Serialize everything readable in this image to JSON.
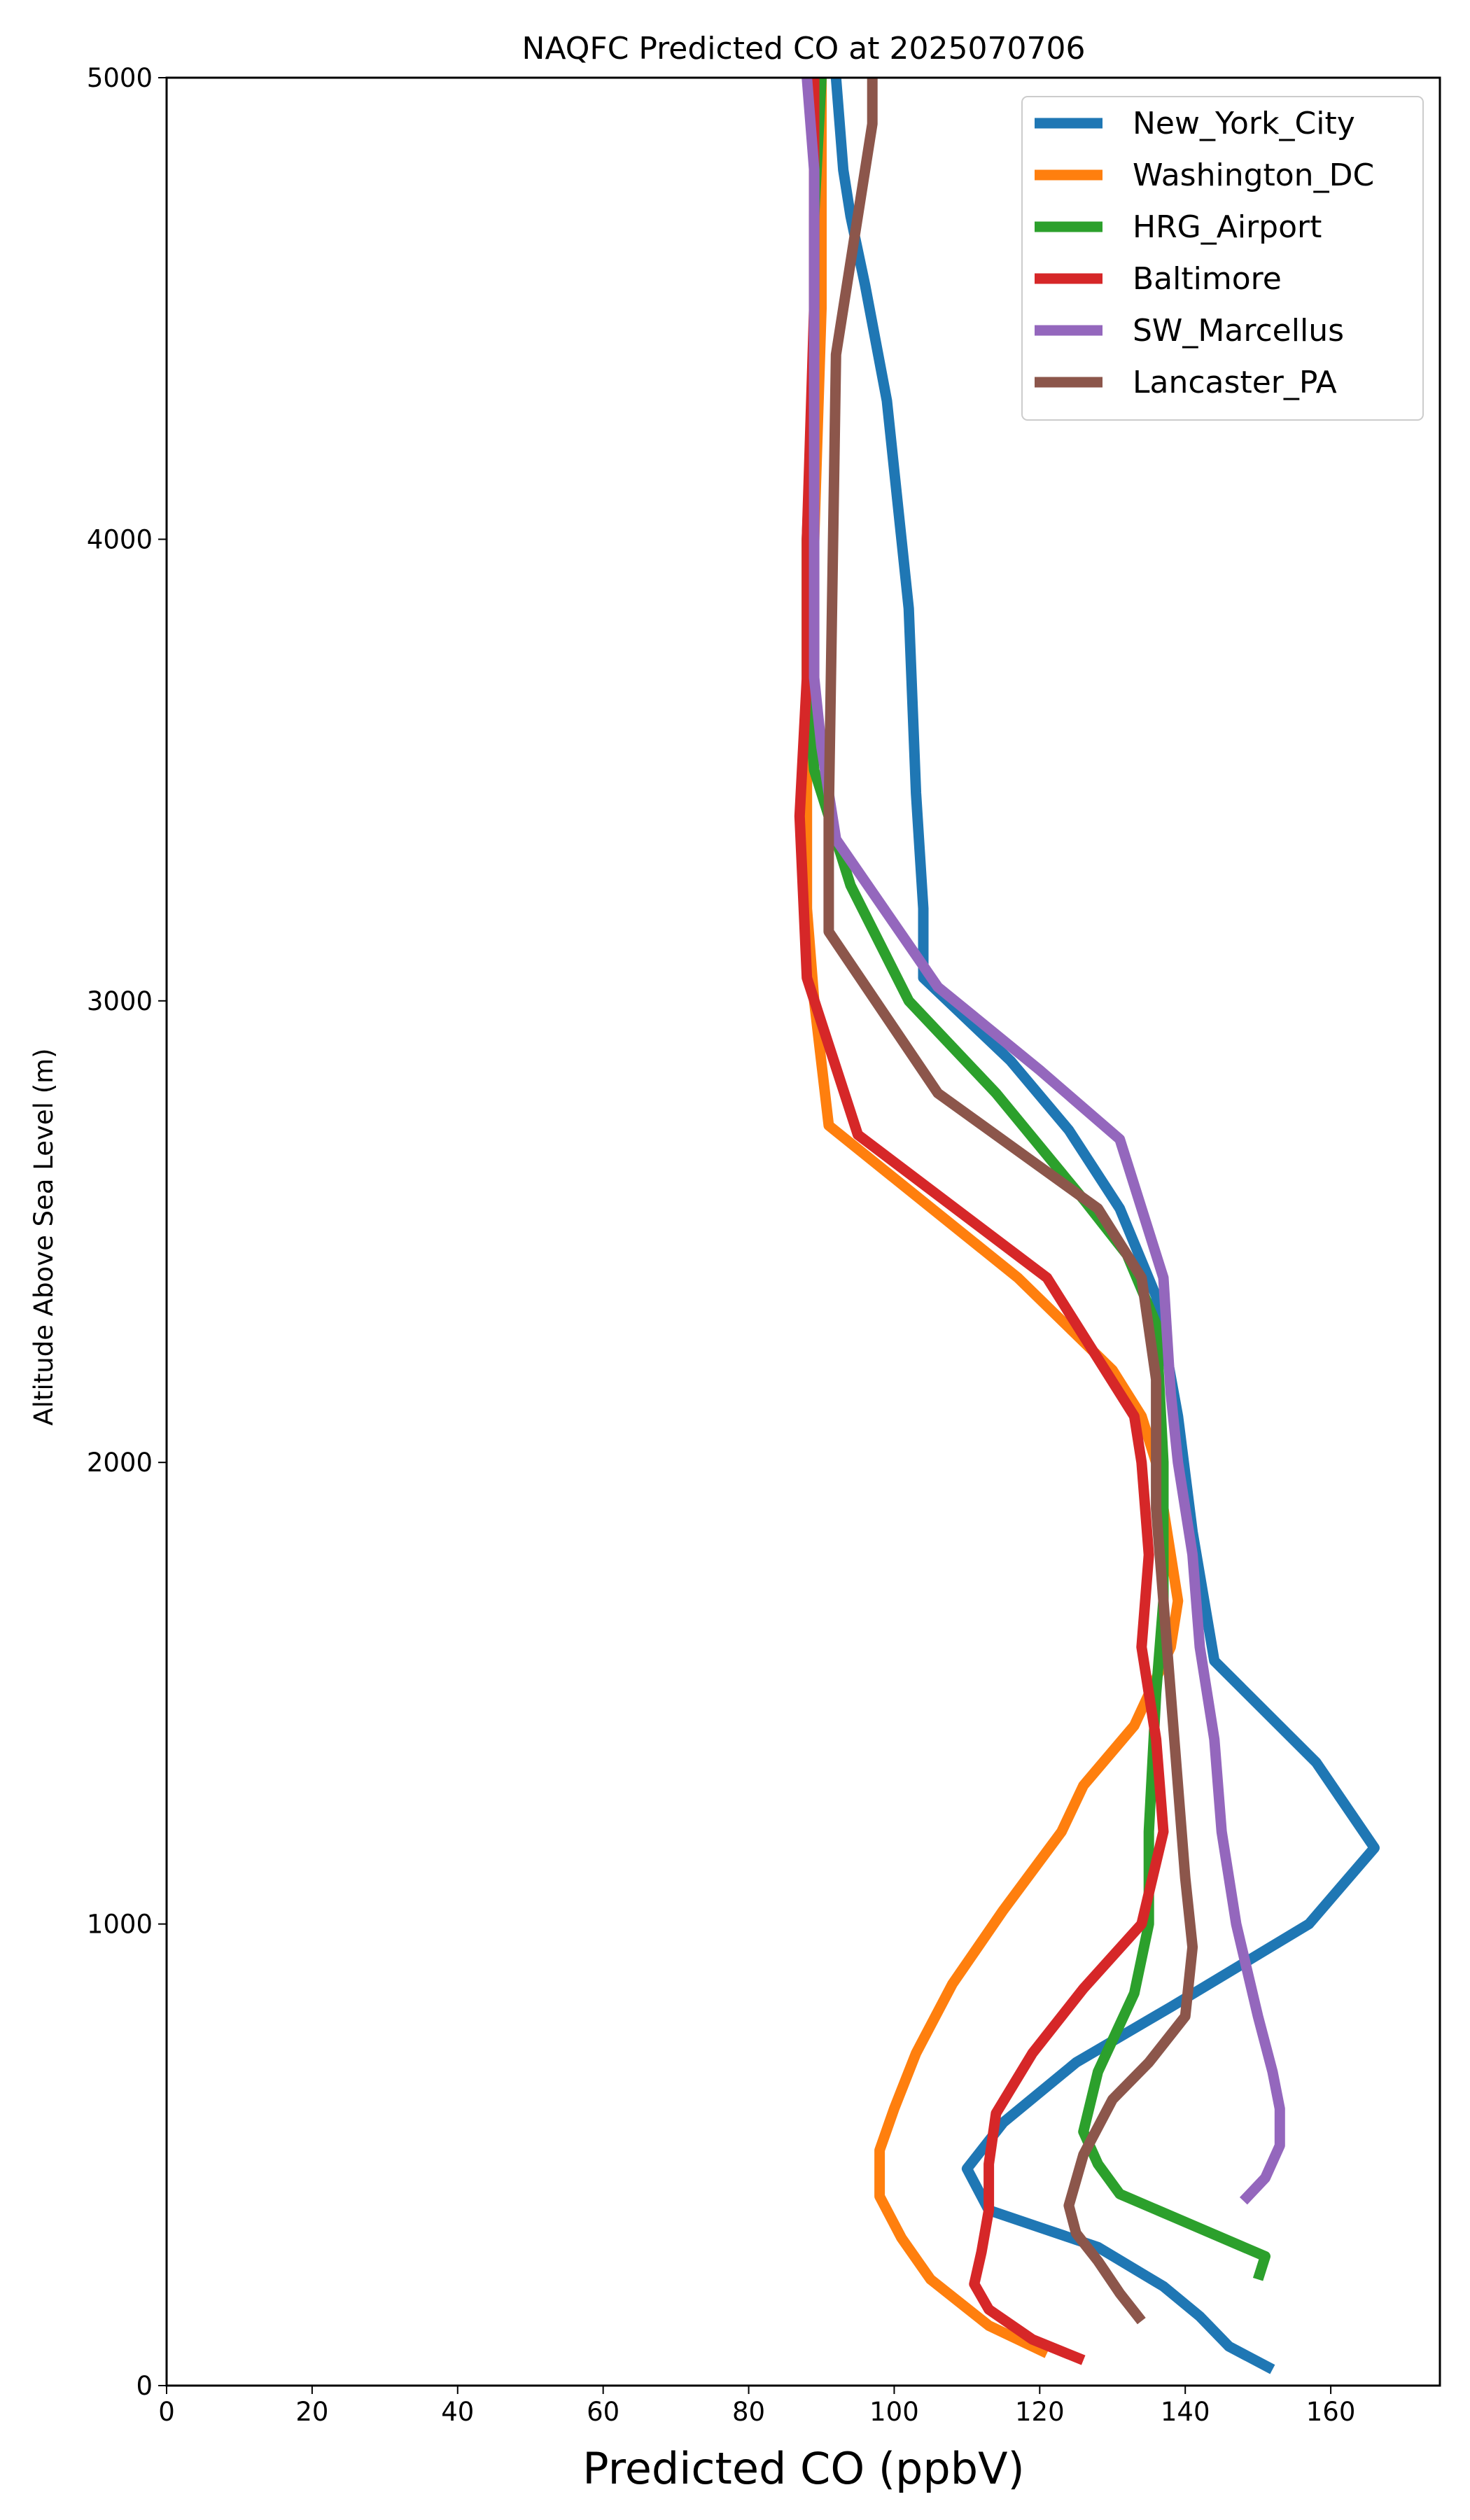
{
  "chart_data": {
    "type": "line",
    "title": "NAQFC Predicted CO at 2025070706",
    "xlabel": "Predicted CO (ppbV)",
    "ylabel": "Altitude Above Sea Level (m)",
    "xlim": [
      0,
      175
    ],
    "ylim": [
      0,
      5000
    ],
    "xticks": [
      0,
      20,
      40,
      60,
      80,
      100,
      120,
      140,
      160
    ],
    "yticks": [
      0,
      1000,
      2000,
      3000,
      4000,
      5000
    ],
    "grid": false,
    "legend_position": "top-right",
    "series": [
      {
        "name": "New_York_City",
        "color": "#1f77b4",
        "x": [
          152,
          146,
          142,
          137,
          128,
          113,
          110,
          115,
          125,
          138,
          157,
          166,
          158,
          144,
          141,
          139,
          136,
          131,
          124,
          116,
          104,
          104,
          103,
          102,
          101,
          99,
          96,
          94,
          93,
          92
        ],
        "y": [
          35,
          85,
          150,
          215,
          300,
          380,
          470,
          570,
          700,
          820,
          1000,
          1165,
          1350,
          1570,
          1850,
          2100,
          2360,
          2550,
          2720,
          2870,
          3050,
          3200,
          3450,
          3850,
          4000,
          4300,
          4550,
          4700,
          4800,
          5000
        ]
      },
      {
        "name": "Washington_DC",
        "color": "#ff7f0e",
        "x": [
          121,
          113,
          105,
          101,
          98,
          98,
          100,
          103,
          108,
          115,
          123,
          126,
          133,
          138,
          139,
          137,
          136,
          134,
          130,
          117,
          91,
          89,
          88,
          88,
          89,
          90,
          90
        ],
        "y": [
          70,
          130,
          230,
          320,
          410,
          510,
          600,
          720,
          870,
          1030,
          1200,
          1300,
          1430,
          1600,
          1700,
          1900,
          2000,
          2100,
          2200,
          2400,
          2730,
          3000,
          3200,
          3500,
          4000,
          4500,
          5000
        ]
      },
      {
        "name": "HRG_Airport",
        "color": "#2ca02c",
        "x": [
          150,
          151,
          131,
          128,
          126,
          128,
          133,
          135,
          135,
          136,
          137,
          137,
          136,
          132,
          126,
          114,
          102,
          94,
          91,
          89,
          88,
          88,
          89,
          89,
          90
        ],
        "y": [
          230,
          280,
          415,
          480,
          550,
          680,
          850,
          1000,
          1200,
          1500,
          1700,
          2000,
          2300,
          2450,
          2570,
          2800,
          3000,
          3250,
          3400,
          3500,
          3700,
          4000,
          4400,
          4700,
          5000
        ]
      },
      {
        "name": "Baltimore",
        "color": "#d62728",
        "x": [
          126,
          119,
          113,
          111,
          112,
          113,
          113,
          114,
          119,
          126,
          134,
          137,
          136,
          134,
          135,
          134,
          133,
          121,
          95,
          88,
          87,
          88,
          88,
          89,
          89
        ],
        "y": [
          55,
          100,
          165,
          220,
          290,
          380,
          480,
          590,
          720,
          860,
          1000,
          1200,
          1400,
          1600,
          1800,
          2000,
          2100,
          2400,
          2710,
          3050,
          3400,
          3700,
          4000,
          4500,
          5000
        ]
      },
      {
        "name": "SW_Marcellus",
        "color": "#9467bd",
        "x": [
          148,
          151,
          153,
          153,
          152,
          150,
          147,
          145,
          144,
          142,
          141,
          139,
          138,
          137,
          131,
          120,
          106,
          92,
          90,
          89,
          89,
          89,
          89,
          88
        ],
        "y": [
          400,
          450,
          520,
          600,
          680,
          800,
          1000,
          1200,
          1400,
          1600,
          1800,
          2000,
          2150,
          2400,
          2700,
          2850,
          3030,
          3350,
          3550,
          3700,
          4000,
          4500,
          4800,
          5000
        ]
      },
      {
        "name": "Lancaster_PA",
        "color": "#8c564b",
        "x": [
          134,
          131,
          128,
          125,
          124,
          126,
          130,
          135,
          140,
          141,
          140,
          139,
          138,
          137,
          136,
          136,
          134,
          128,
          106,
          91,
          91,
          92,
          97,
          97
        ],
        "y": [
          140,
          200,
          270,
          330,
          390,
          500,
          620,
          700,
          800,
          950,
          1100,
          1300,
          1500,
          1700,
          1900,
          2180,
          2400,
          2550,
          2800,
          3150,
          3400,
          4400,
          4900,
          5000
        ]
      }
    ]
  }
}
